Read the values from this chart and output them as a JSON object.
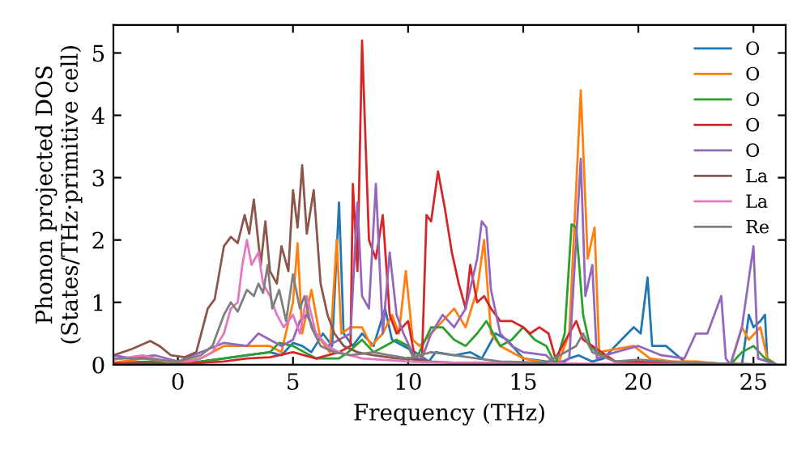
{
  "chart_data": {
    "type": "line",
    "xlabel": "Frequency (THz)",
    "ylabel": "Phonon projected DOS\n(States/THz·primitive cell)",
    "xlim": [
      -2.8,
      26.4
    ],
    "ylim": [
      0,
      5.45
    ],
    "xticks": [
      0,
      5,
      10,
      15,
      20,
      25
    ],
    "yticks": [
      0,
      1,
      2,
      3,
      4,
      5
    ],
    "grid": false,
    "legend": "top right",
    "marker": "none",
    "line_style": "solid",
    "series": [
      {
        "name": "O",
        "color": "#1f77b4",
        "x": [
          -2.8,
          -1,
          0,
          1,
          2,
          3,
          4,
          4.5,
          5.0,
          5.4,
          5.8,
          6.3,
          6.7,
          7.0,
          7.2,
          7.6,
          8.0,
          8.5,
          9.0,
          9.3,
          9.8,
          10.3,
          10.9,
          11.2,
          12,
          12.7,
          13.2,
          13.8,
          14.3,
          15,
          16,
          16.8,
          17,
          17.4,
          18,
          18.5,
          19,
          19.8,
          20.1,
          20.4,
          20.6,
          21.2,
          22,
          24.5,
          24.8,
          25,
          25.3,
          25.5,
          25.6,
          26
        ],
        "values": [
          0.03,
          0.05,
          0.02,
          0.05,
          0.1,
          0.15,
          0.2,
          0.15,
          0.35,
          0.3,
          0.2,
          0.5,
          0.3,
          2.6,
          0.5,
          0.3,
          0.5,
          0.3,
          0.9,
          0.4,
          0.3,
          0.2,
          0.05,
          0.2,
          0.15,
          0.2,
          0.1,
          0.5,
          0.4,
          0.1,
          0.05,
          0.05,
          0.1,
          0.15,
          0.05,
          0.1,
          0.3,
          0.6,
          0.5,
          1.4,
          0.3,
          0.3,
          0.05,
          0,
          0.8,
          0.6,
          0.7,
          0.8,
          0.1,
          0
        ]
      },
      {
        "name": "O",
        "color": "#ff7f0e",
        "x": [
          -2.8,
          -1.5,
          0,
          1,
          2,
          3,
          4,
          4.5,
          5.0,
          5.2,
          5.4,
          5.8,
          6.2,
          6.6,
          6.9,
          7.1,
          7.5,
          8.0,
          8.4,
          8.9,
          9.3,
          9.6,
          9.9,
          10.2,
          10.5,
          11,
          11.5,
          12,
          12.5,
          13.0,
          13.3,
          13.6,
          14,
          15,
          16.5,
          17.0,
          17.5,
          17.8,
          18.1,
          18.3,
          19,
          19.8,
          20.5,
          21.5,
          22.5,
          24,
          24.5,
          24.8,
          25.3,
          25.6,
          26
        ],
        "values": [
          0.03,
          0.1,
          0.03,
          0.1,
          0.3,
          0.3,
          0.3,
          0.2,
          1.0,
          1.95,
          0.5,
          1.2,
          0.4,
          0.2,
          2.0,
          0.5,
          0.6,
          0.6,
          0.3,
          0.5,
          0.8,
          0.5,
          1.5,
          0.4,
          0.3,
          0.5,
          0.7,
          0.9,
          0.6,
          1.2,
          2.0,
          0.5,
          0.3,
          0.1,
          0,
          0.5,
          4.4,
          1.7,
          2.2,
          0.2,
          0.25,
          0.3,
          0.1,
          0.05,
          0.05,
          0,
          0.6,
          0.4,
          0.6,
          0.1,
          0
        ]
      },
      {
        "name": "O",
        "color": "#2ca02c",
        "x": [
          -2.8,
          0,
          1,
          2,
          3,
          4,
          4.4,
          5,
          5.5,
          6,
          6.5,
          7,
          7.4,
          8,
          8.5,
          9,
          9.5,
          10,
          10.3,
          11,
          11.5,
          12,
          12.5,
          13,
          13.4,
          14,
          14.5,
          15,
          15.5,
          16,
          16.4,
          16.8,
          17.1,
          17.3,
          17.6,
          17.9,
          18.2,
          19,
          24,
          24.5,
          25,
          25.5,
          26
        ],
        "values": [
          0.02,
          0.02,
          0.05,
          0.1,
          0.15,
          0.2,
          0.35,
          0.3,
          0.2,
          0.1,
          0.1,
          0.1,
          0.2,
          0.4,
          0.2,
          0.3,
          0.4,
          0.3,
          0.05,
          0.6,
          0.6,
          0.4,
          0.3,
          0.5,
          0.7,
          0.3,
          0.4,
          0.6,
          0.4,
          0.3,
          0,
          0.5,
          2.25,
          2.2,
          0.8,
          0.3,
          0.2,
          0.05,
          0,
          0.2,
          0.3,
          0.1,
          0
        ]
      },
      {
        "name": "O",
        "color": "#d62728",
        "x": [
          -2.8,
          0,
          2,
          3,
          4,
          5,
          6,
          7,
          7.5,
          7.6,
          7.8,
          8.0,
          8.3,
          8.6,
          8.9,
          9.2,
          9.5,
          10,
          10.3,
          10.6,
          10.8,
          11.0,
          11.3,
          11.6,
          11.9,
          12.2,
          12.5,
          12.7,
          13,
          13.3,
          13.6,
          14,
          14.5,
          15,
          15.3,
          15.7,
          16.1,
          16.4,
          17,
          17.3,
          17.6,
          18,
          19,
          26
        ],
        "values": [
          0.02,
          0.01,
          0.05,
          0.1,
          0.12,
          0.2,
          0.1,
          0.2,
          0.3,
          2.9,
          1.5,
          5.2,
          2.0,
          1.7,
          2.4,
          0.8,
          0.5,
          0.7,
          0.1,
          0.05,
          2.4,
          2.3,
          3.1,
          2.5,
          1.8,
          1.3,
          0.9,
          1.6,
          1.0,
          1.1,
          0.9,
          0.7,
          0.7,
          0.6,
          0.5,
          0.6,
          0.5,
          0.1,
          0.5,
          0.7,
          0.4,
          0.3,
          0.05,
          0
        ]
      },
      {
        "name": "O",
        "color": "#9467bd",
        "x": [
          -2.8,
          -2,
          -1,
          0,
          1,
          2,
          3,
          3.5,
          4,
          4.5,
          5,
          5.3,
          5.6,
          6,
          6.5,
          7,
          7.5,
          7.8,
          8.0,
          8.3,
          8.6,
          8.9,
          9.2,
          9.5,
          9.8,
          10.3,
          10.6,
          11,
          11.5,
          12,
          12.5,
          13.0,
          13.2,
          13.4,
          13.6,
          14,
          14.5,
          15,
          16,
          16.4,
          17,
          17.5,
          17.7,
          18.0,
          18.2,
          19,
          20,
          21,
          22,
          22.5,
          23,
          23.6,
          23.8,
          24,
          24.5,
          25.0,
          25.2,
          26
        ],
        "values": [
          0.15,
          0.1,
          0.15,
          0.05,
          0.2,
          0.35,
          0.3,
          0.5,
          0.4,
          0.3,
          0.4,
          0.7,
          0.8,
          0.5,
          0.3,
          0.4,
          0.5,
          2.6,
          1.1,
          0.9,
          2.9,
          0.5,
          1.8,
          0.8,
          0.5,
          0.1,
          0.1,
          0.5,
          0.8,
          0.6,
          0.9,
          1.7,
          2.3,
          2.2,
          1.2,
          0.5,
          0.3,
          0.2,
          0.15,
          0,
          0.1,
          3.3,
          1.1,
          1.6,
          0.1,
          0.2,
          0.3,
          0.15,
          0.1,
          0.5,
          0.5,
          1.1,
          0.1,
          0,
          0.6,
          1.9,
          0.1,
          0
        ]
      },
      {
        "name": "La",
        "color": "#8c564b",
        "x": [
          -2.8,
          -2,
          -1.2,
          -0.8,
          -0.3,
          0.3,
          0.8,
          1.3,
          1.6,
          2,
          2.3,
          2.6,
          2.9,
          3.1,
          3.3,
          3.6,
          3.8,
          4.0,
          4.3,
          4.5,
          4.8,
          5.0,
          5.2,
          5.4,
          5.6,
          5.9,
          6.2,
          6.5,
          6.8,
          7.2,
          7.8,
          8.5,
          9.5,
          10.5,
          11,
          12,
          13,
          15,
          16,
          26
        ],
        "values": [
          0.15,
          0.25,
          0.38,
          0.3,
          0.15,
          0.12,
          0.2,
          0.9,
          1.05,
          1.9,
          2.05,
          1.95,
          2.4,
          2.1,
          2.65,
          1.6,
          2.3,
          1.5,
          1.3,
          1.9,
          1.5,
          2.8,
          2.2,
          3.2,
          2.1,
          2.8,
          1.3,
          0.8,
          0.5,
          0.3,
          0.2,
          0.15,
          0.1,
          0.08,
          0.05,
          0.03,
          0.03,
          0.02,
          0,
          0
        ]
      },
      {
        "name": "La",
        "color": "#e377c2",
        "x": [
          -2.8,
          -1.5,
          -0.5,
          0.5,
          1,
          1.5,
          2,
          2.3,
          2.6,
          2.8,
          3.0,
          3.2,
          3.5,
          3.7,
          4.0,
          4.3,
          4.6,
          5,
          5.3,
          5.6,
          6,
          6.5,
          7,
          8,
          10,
          12,
          15,
          26
        ],
        "values": [
          0.08,
          0.15,
          0.05,
          0.05,
          0.1,
          0.2,
          0.5,
          0.9,
          1.0,
          1.6,
          2.0,
          1.6,
          1.8,
          1.3,
          1.1,
          0.8,
          0.6,
          0.8,
          0.5,
          1.1,
          0.5,
          0.3,
          0.2,
          0.1,
          0.05,
          0.03,
          0.02,
          0
        ]
      },
      {
        "name": "Re",
        "color": "#7f7f7f",
        "x": [
          -2.8,
          -1.5,
          0,
          1,
          1.5,
          2,
          2.3,
          2.6,
          3,
          3.3,
          3.5,
          3.7,
          3.9,
          4.1,
          4.4,
          4.7,
          5,
          5.3,
          5.5,
          5.8,
          6.2,
          6.8,
          7.5,
          8.5,
          9.2,
          10,
          11,
          12,
          13,
          14,
          16,
          17.3,
          17.6,
          18,
          19,
          20,
          22,
          26
        ],
        "values": [
          0.1,
          0.1,
          0.05,
          0.15,
          0.3,
          0.8,
          1.0,
          0.85,
          1.2,
          1.1,
          1.3,
          1.15,
          1.6,
          0.9,
          1.2,
          0.7,
          1.45,
          0.9,
          1.1,
          0.6,
          0.3,
          0.2,
          0.15,
          0.2,
          0.15,
          0.1,
          0.2,
          0.15,
          0.1,
          0.05,
          0.03,
          0.3,
          0.5,
          0.2,
          0.05,
          0.08,
          0.03,
          0
        ]
      }
    ]
  }
}
